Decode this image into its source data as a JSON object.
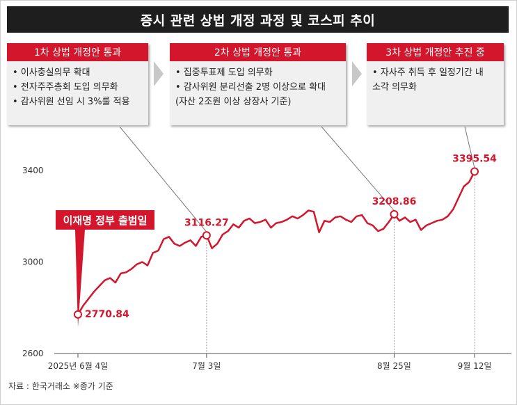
{
  "title": "증시 관련 상법 개정 과정 및 코스피 추이",
  "boxes": [
    {
      "header": "1차 상법 개정안 통과",
      "items": [
        "• 이사충실의무 확대",
        "• 전자주주총회 도입 의무화",
        "• 감사위원 선임 시 3%룰 적용"
      ]
    },
    {
      "header": "2차 상법 개정안 통과",
      "items": [
        "• 집중투표제 도입 의무화",
        "• 감사위원 분리선출 2명 이상으로 확대",
        "(자산 2조원 이상 상장사 기준)"
      ]
    },
    {
      "header": "3차 상법 개정안 추진 중",
      "items": [
        "• 자사주 취득 후 일정기간 내",
        "소각 의무화"
      ]
    }
  ],
  "callout": "이재명 정부 출범일",
  "source": "자료 : 한국거래소 ※종가 기준",
  "colors": {
    "accent": "#d3162c",
    "title_bg": "#1e1e1e",
    "box_bg": "#f0f0f0"
  },
  "chart_data": {
    "type": "line",
    "title": "증시 관련 상법 개정 과정 및 코스피 추이",
    "xlabel": "",
    "ylabel": "",
    "ylim": [
      2600,
      3400
    ],
    "yticks": [
      2600,
      3000,
      3400
    ],
    "xticks": [
      "2025년 6월 4일",
      "7월 3일",
      "8월 25일",
      "9월 12일"
    ],
    "grid": false,
    "series": [
      {
        "values": [
          2770.84,
          2810,
          2840,
          2870,
          2895,
          2920,
          2930,
          2910,
          2950,
          2955,
          2970,
          2990,
          3000,
          2985,
          3040,
          3050,
          3100,
          3110,
          3080,
          3070,
          3085,
          3095,
          3070,
          3110,
          3116.27,
          3060,
          3080,
          3120,
          3135,
          3165,
          3150,
          3180,
          3190,
          3170,
          3175,
          3185,
          3150,
          3170,
          3175,
          3185,
          3200,
          3190,
          3205,
          3225,
          3220,
          3130,
          3180,
          3175,
          3195,
          3200,
          3185,
          3175,
          3200,
          3205,
          3170,
          3160,
          3135,
          3145,
          3175,
          3208.86,
          3180,
          3195,
          3175,
          3185,
          3140,
          3160,
          3170,
          3180,
          3185,
          3200,
          3230,
          3280,
          3330,
          3350,
          3395.54
        ]
      }
    ],
    "annotations": [
      {
        "label": "2770.84",
        "x": "2025년 6월 4일",
        "y": 2770.84
      },
      {
        "label": "3116.27",
        "x": "7월 3일",
        "y": 3116.27
      },
      {
        "label": "3208.86",
        "x": "8월 25일",
        "y": 3208.86
      },
      {
        "label": "3395.54",
        "x": "9월 12일",
        "y": 3395.54
      }
    ]
  }
}
